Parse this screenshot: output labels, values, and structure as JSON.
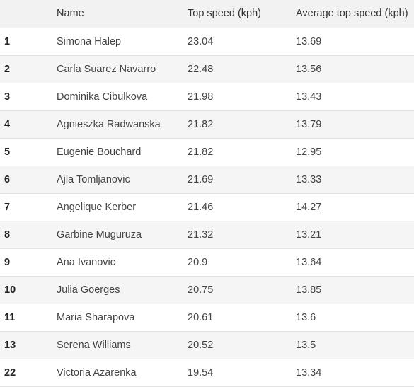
{
  "table": {
    "headers": {
      "rank": "",
      "name": "Name",
      "top_speed": "Top speed (kph)",
      "avg_top_speed": "Average top speed (kph)"
    },
    "rows": [
      {
        "rank": "1",
        "name": "Simona Halep",
        "top_speed": "23.04",
        "avg_top_speed": "13.69"
      },
      {
        "rank": "2",
        "name": "Carla Suarez Navarro",
        "top_speed": "22.48",
        "avg_top_speed": "13.56"
      },
      {
        "rank": "3",
        "name": "Dominika Cibulkova",
        "top_speed": "21.98",
        "avg_top_speed": "13.43"
      },
      {
        "rank": "4",
        "name": "Agnieszka Radwanska",
        "top_speed": "21.82",
        "avg_top_speed": "13.79"
      },
      {
        "rank": "5",
        "name": "Eugenie Bouchard",
        "top_speed": "21.82",
        "avg_top_speed": "12.95"
      },
      {
        "rank": "6",
        "name": "Ajla Tomljanovic",
        "top_speed": "21.69",
        "avg_top_speed": "13.33"
      },
      {
        "rank": "7",
        "name": "Angelique Kerber",
        "top_speed": "21.46",
        "avg_top_speed": "14.27"
      },
      {
        "rank": "8",
        "name": "Garbine Muguruza",
        "top_speed": "21.32",
        "avg_top_speed": "13.21"
      },
      {
        "rank": "9",
        "name": "Ana Ivanovic",
        "top_speed": "20.9",
        "avg_top_speed": "13.64"
      },
      {
        "rank": "10",
        "name": "Julia Goerges",
        "top_speed": "20.75",
        "avg_top_speed": "13.85"
      },
      {
        "rank": "11",
        "name": "Maria Sharapova",
        "top_speed": "20.61",
        "avg_top_speed": "13.6"
      },
      {
        "rank": "13",
        "name": "Serena Williams",
        "top_speed": "20.52",
        "avg_top_speed": "13.5"
      },
      {
        "rank": "22",
        "name": "Victoria Azarenka",
        "top_speed": "19.54",
        "avg_top_speed": "13.34"
      }
    ]
  }
}
